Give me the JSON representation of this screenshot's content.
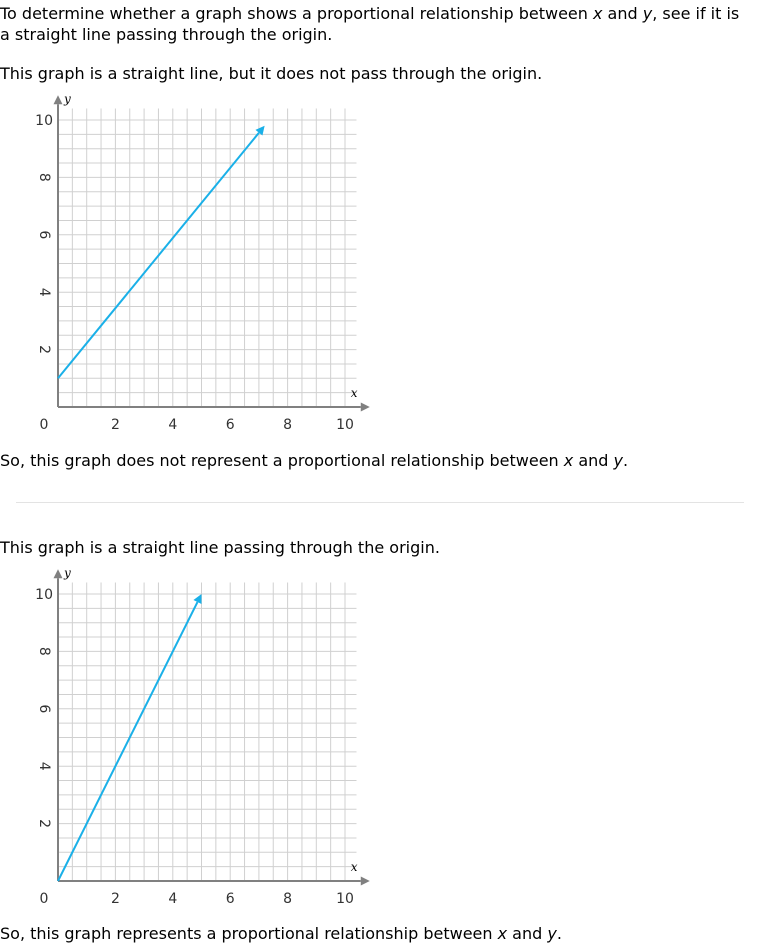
{
  "intro": {
    "line1_a": "To determine whether a graph shows a proportional relationship between ",
    "x": "x",
    "line1_b": " and ",
    "y": "y",
    "line1_c": ", see if it is",
    "line2": "a straight line passing through the origin."
  },
  "examples": [
    {
      "statement": "This graph is a straight line, but it does not pass through the origin.",
      "conclusion_a": "So, this graph does not represent a proportional relationship between ",
      "conclusion_b": " and ",
      "conclusion_c": "."
    },
    {
      "statement": "This graph is a straight line passing through the origin.",
      "conclusion_a": "So, this graph represents a proportional relationship between ",
      "conclusion_b": " and ",
      "conclusion_c": "."
    }
  ],
  "colors": {
    "line": "#1ab0e8",
    "grid": "#d0d0d0",
    "axis": "#808080"
  },
  "chart_data": [
    {
      "type": "line",
      "xlabel": "x",
      "ylabel": "y",
      "xlim": [
        0,
        10
      ],
      "ylim": [
        0,
        10
      ],
      "x_ticks": [
        "0",
        "2",
        "4",
        "6",
        "8",
        "10"
      ],
      "y_ticks": [
        "2",
        "4",
        "6",
        "8",
        "10"
      ],
      "grid": true,
      "series": [
        {
          "x": [
            0,
            7.2
          ],
          "y": [
            1,
            9.8
          ]
        }
      ]
    },
    {
      "type": "line",
      "xlabel": "x",
      "ylabel": "y",
      "xlim": [
        0,
        10
      ],
      "ylim": [
        0,
        10
      ],
      "x_ticks": [
        "0",
        "2",
        "4",
        "6",
        "8",
        "10"
      ],
      "y_ticks": [
        "2",
        "4",
        "6",
        "8",
        "10"
      ],
      "grid": true,
      "series": [
        {
          "x": [
            0,
            5
          ],
          "y": [
            0,
            10
          ]
        }
      ]
    }
  ]
}
